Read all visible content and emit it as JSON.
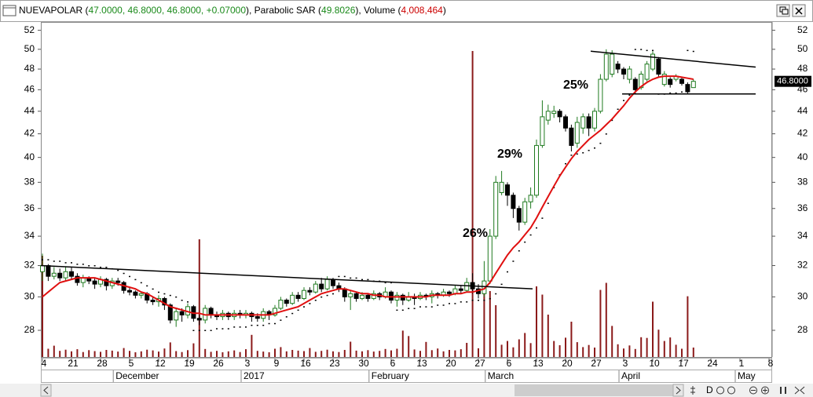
{
  "header": {
    "segments": [
      {
        "text": "NUEVAPOLAR (",
        "color": "#000000"
      },
      {
        "text": "47.0000, 46.8000, 46.8000, +0.07000",
        "color": "#1a8a1a"
      },
      {
        "text": "), Parabolic SAR (",
        "color": "#000000"
      },
      {
        "text": "49.8026",
        "color": "#1a8a1a"
      },
      {
        "text": "), Volume (",
        "color": "#000000"
      },
      {
        "text": "4,008,464",
        "color": "#cc0000"
      },
      {
        "text": ")",
        "color": "#000000"
      }
    ],
    "toolbar_text": "D"
  },
  "chart_data": {
    "type": "candlestick",
    "log_y": true,
    "grid": false,
    "ylim": [
      26.5,
      52.9
    ],
    "yticks": [
      28,
      30,
      32,
      34,
      36,
      38,
      40,
      42,
      44,
      46,
      48,
      50,
      52
    ],
    "categories": [
      "4",
      null,
      null,
      null,
      null,
      "21",
      null,
      null,
      null,
      null,
      "28",
      null,
      null,
      null,
      null,
      "5",
      null,
      null,
      null,
      null,
      "12",
      null,
      null,
      null,
      null,
      "19",
      null,
      null,
      null,
      null,
      "26",
      null,
      null,
      null,
      null,
      "3",
      null,
      null,
      null,
      null,
      "9",
      null,
      null,
      null,
      null,
      "16",
      null,
      null,
      null,
      null,
      "23",
      null,
      null,
      null,
      null,
      "30",
      null,
      null,
      null,
      null,
      "6",
      null,
      null,
      null,
      null,
      "13",
      null,
      null,
      null,
      null,
      "20",
      null,
      null,
      null,
      null,
      "27",
      null,
      null,
      null,
      null,
      "6",
      null,
      null,
      null,
      null,
      "13",
      null,
      null,
      null,
      null,
      "20",
      null,
      null,
      null,
      null,
      "27",
      null,
      null,
      null,
      null,
      "3",
      null,
      null,
      null,
      null,
      "10",
      null,
      null,
      null,
      null,
      "17",
      null,
      null,
      null,
      null,
      "24",
      null,
      null,
      null,
      null,
      "1",
      null,
      null,
      null,
      null,
      "8"
    ],
    "months": [
      null,
      null,
      null,
      null,
      null,
      null,
      null,
      null,
      null,
      null,
      null,
      null,
      null,
      "December",
      null,
      null,
      null,
      null,
      null,
      null,
      null,
      null,
      null,
      null,
      null,
      null,
      null,
      null,
      null,
      null,
      null,
      null,
      null,
      null,
      null,
      "2017",
      null,
      null,
      null,
      null,
      null,
      null,
      null,
      null,
      null,
      null,
      null,
      null,
      null,
      null,
      null,
      null,
      null,
      null,
      null,
      null,
      null,
      "February",
      null,
      null,
      null,
      null,
      null,
      null,
      null,
      null,
      null,
      null,
      null,
      null,
      null,
      null,
      null,
      null,
      null,
      null,
      null,
      "March",
      null,
      null,
      null,
      null,
      null,
      null,
      null,
      null,
      null,
      null,
      null,
      null,
      null,
      null,
      null,
      null,
      null,
      null,
      null,
      null,
      null,
      null,
      "April",
      null,
      null,
      null,
      null,
      null,
      null,
      null,
      null,
      null,
      null,
      null,
      null,
      null,
      null,
      null,
      null,
      null,
      null,
      null,
      "May",
      null,
      null,
      null,
      null,
      null
    ],
    "series": [
      {
        "type": "candlestick",
        "up_color": "#1f7a1f",
        "down_color": "#000000",
        "open": [
          31.6,
          32.0,
          31.3,
          31.5,
          31.2,
          31.6,
          31.3,
          30.9,
          31.2,
          31.0,
          30.8,
          31.1,
          30.7,
          31.0,
          30.9,
          30.4,
          30.3,
          30.1,
          30.2,
          29.8,
          29.7,
          29.9,
          29.5,
          28.6,
          29.1,
          28.9,
          29.4,
          28.7,
          28.6,
          29.3,
          28.9,
          28.8,
          29.0,
          28.8,
          29.0,
          28.9,
          29.0,
          28.8,
          28.7,
          29.1,
          28.9,
          29.3,
          29.8,
          29.6,
          30.1,
          29.9,
          30.4,
          30.3,
          30.8,
          30.5,
          31.1,
          30.7,
          30.5,
          30.0,
          30.2,
          29.9,
          30.1,
          29.9,
          30.2,
          30.0,
          30.3,
          29.8,
          30.1,
          29.8,
          30.0,
          29.9,
          30.1,
          30.0,
          30.2,
          30.1,
          30.3,
          30.2,
          30.5,
          30.4,
          30.9,
          30.5,
          30.2,
          31.0,
          34.0,
          37.2,
          37.8,
          37.0,
          36.0,
          35.0,
          36.5,
          37.0,
          41.0,
          43.2,
          43.8,
          44.0,
          43.5,
          42.5,
          41.2,
          42.5,
          43.5,
          42.5,
          44.0,
          47.0,
          47.5,
          48.5,
          48.0,
          47.0,
          47.0,
          46.2,
          47.0,
          48.0,
          49.0,
          46.5,
          47.0,
          47.0,
          47.0,
          46.5,
          46.2,
          null,
          null,
          null,
          null,
          null,
          null,
          null,
          null,
          null,
          null,
          null,
          null,
          null
        ],
        "high": [
          32.8,
          32.1,
          31.9,
          31.8,
          31.9,
          31.9,
          31.5,
          31.4,
          31.3,
          31.2,
          31.3,
          31.2,
          31.2,
          31.2,
          31.0,
          30.6,
          30.4,
          30.3,
          30.3,
          30.0,
          30.1,
          30.0,
          29.6,
          29.3,
          29.3,
          29.6,
          29.5,
          28.9,
          29.5,
          29.4,
          29.1,
          29.2,
          29.1,
          29.2,
          29.2,
          29.2,
          29.1,
          29.0,
          29.3,
          29.2,
          29.5,
          30.0,
          29.9,
          30.3,
          30.3,
          30.6,
          30.6,
          31.0,
          31.2,
          31.3,
          31.2,
          30.9,
          30.6,
          30.4,
          30.3,
          30.3,
          30.2,
          30.4,
          30.3,
          30.6,
          30.4,
          30.3,
          30.2,
          30.3,
          30.2,
          30.3,
          30.2,
          30.4,
          30.3,
          30.5,
          30.4,
          30.7,
          30.7,
          31.2,
          31.5,
          30.8,
          32.3,
          34.5,
          38.5,
          38.9,
          38.0,
          37.2,
          36.2,
          36.8,
          37.6,
          41.5,
          45.0,
          44.6,
          44.5,
          44.2,
          43.7,
          42.8,
          43.5,
          43.8,
          43.8,
          44.3,
          47.5,
          50.0,
          49.9,
          48.8,
          48.2,
          48.3,
          47.2,
          47.8,
          48.8,
          49.8,
          49.2,
          47.8,
          47.2,
          47.5,
          47.2,
          46.7,
          47.0,
          null,
          null,
          null,
          null,
          null,
          null,
          null,
          null,
          null,
          null,
          null,
          null,
          null
        ],
        "low": [
          31.0,
          31.0,
          31.1,
          31.0,
          31.0,
          31.1,
          30.7,
          30.6,
          30.8,
          30.5,
          30.6,
          30.4,
          30.5,
          30.7,
          30.2,
          30.1,
          29.9,
          29.9,
          29.6,
          29.5,
          29.4,
          29.2,
          28.4,
          28.2,
          28.5,
          28.7,
          28.5,
          28.3,
          28.4,
          28.7,
          28.6,
          28.6,
          28.6,
          28.6,
          28.7,
          28.7,
          28.5,
          28.5,
          28.5,
          28.6,
          28.8,
          29.2,
          29.4,
          29.5,
          29.7,
          29.8,
          30.1,
          30.2,
          30.3,
          30.4,
          30.5,
          30.3,
          29.7,
          29.2,
          29.7,
          29.8,
          29.7,
          29.8,
          29.8,
          29.9,
          29.6,
          29.4,
          29.5,
          29.7,
          29.5,
          29.8,
          29.8,
          29.6,
          29.9,
          30.0,
          30.0,
          30.1,
          30.2,
          30.3,
          30.2,
          29.9,
          30.0,
          30.8,
          33.8,
          37.0,
          36.2,
          35.3,
          34.4,
          34.8,
          36.0,
          36.8,
          40.8,
          42.8,
          43.4,
          43.0,
          42.2,
          40.5,
          40.8,
          42.0,
          41.8,
          42.2,
          43.8,
          46.8,
          47.2,
          47.6,
          47.0,
          46.6,
          45.6,
          46.0,
          46.8,
          47.8,
          47.2,
          46.3,
          46.2,
          46.8,
          46.4,
          45.6,
          46.2,
          null,
          null,
          null,
          null,
          null,
          null,
          null,
          null,
          null,
          null,
          null,
          null,
          null
        ],
        "close": [
          32.0,
          31.3,
          31.5,
          31.2,
          31.6,
          31.3,
          30.9,
          31.2,
          31.0,
          30.8,
          31.1,
          30.7,
          31.0,
          30.9,
          30.4,
          30.3,
          30.1,
          30.2,
          29.8,
          29.7,
          29.9,
          29.5,
          28.6,
          29.1,
          28.9,
          29.4,
          28.7,
          28.6,
          29.3,
          28.9,
          28.8,
          29.0,
          28.8,
          29.0,
          28.9,
          29.0,
          28.8,
          28.7,
          29.1,
          28.9,
          29.3,
          29.8,
          29.6,
          30.1,
          29.9,
          30.4,
          30.3,
          30.8,
          30.5,
          31.1,
          30.7,
          30.5,
          30.0,
          30.2,
          29.9,
          30.1,
          29.9,
          30.2,
          30.0,
          30.3,
          29.8,
          30.1,
          29.8,
          30.0,
          29.9,
          30.1,
          30.0,
          30.2,
          30.1,
          30.3,
          30.2,
          30.5,
          30.4,
          30.9,
          30.5,
          30.2,
          31.0,
          34.0,
          38.0,
          38.0,
          37.0,
          36.0,
          35.0,
          36.5,
          37.0,
          41.0,
          43.5,
          44.0,
          44.0,
          43.5,
          42.5,
          41.0,
          43.0,
          43.5,
          42.5,
          44.0,
          47.0,
          49.5,
          49.5,
          48.0,
          47.5,
          48.0,
          46.0,
          47.5,
          48.5,
          49.5,
          47.5,
          47.5,
          46.5,
          47.3,
          46.6,
          45.8,
          46.8,
          null,
          null,
          null,
          null,
          null,
          null,
          null,
          null,
          null,
          null,
          null,
          null,
          null
        ]
      },
      {
        "type": "dots",
        "color": "#000000",
        "values": [
          32.4,
          32.4,
          32.3,
          32.3,
          32.2,
          32.2,
          32.1,
          32.1,
          32.0,
          32.0,
          31.9,
          31.9,
          31.8,
          31.7,
          31.5,
          31.3,
          31.1,
          30.9,
          30.7,
          30.5,
          30.3,
          30.2,
          30.1,
          30.0,
          29.8,
          29.7,
          28.0,
          28.0,
          28.0,
          28.0,
          28.1,
          28.1,
          28.1,
          28.2,
          28.2,
          28.2,
          28.3,
          28.3,
          28.3,
          28.4,
          28.4,
          28.6,
          28.8,
          29.0,
          29.2,
          29.4,
          29.6,
          29.8,
          30.0,
          30.1,
          30.2,
          31.3,
          31.3,
          31.2,
          31.2,
          31.1,
          31.1,
          31.0,
          31.0,
          30.9,
          30.9,
          29.2,
          29.2,
          29.3,
          29.3,
          29.4,
          29.4,
          29.4,
          29.5,
          29.5,
          29.6,
          29.6,
          29.7,
          29.7,
          29.8,
          29.8,
          29.8,
          29.9,
          30.2,
          30.8,
          31.6,
          32.3,
          33.0,
          33.6,
          34.1,
          34.6,
          35.3,
          36.4,
          37.6,
          38.6,
          39.5,
          40.2,
          40.3,
          40.4,
          40.6,
          40.8,
          41.2,
          42.0,
          43.2,
          44.2,
          45.0,
          45.5,
          50.0,
          50.0,
          49.9,
          49.9,
          45.6,
          45.6,
          45.7,
          45.7,
          45.8,
          49.9,
          49.8026,
          null,
          null,
          null,
          null,
          null,
          null,
          null,
          null,
          null,
          null,
          null,
          null,
          null
        ]
      },
      {
        "type": "volume",
        "color": "#8b1a1a",
        "ylim": [
          0,
          135000000
        ],
        "values": [
          43000000,
          3500000,
          4800000,
          2600000,
          3100000,
          2400000,
          3300000,
          2100000,
          2900000,
          2500000,
          2200000,
          3000000,
          2700000,
          2300000,
          3800000,
          2600000,
          2000000,
          2400000,
          3100000,
          2800000,
          2300000,
          3600000,
          6200000,
          2500000,
          2100000,
          2900000,
          5800000,
          50000000,
          3400000,
          2200000,
          2600000,
          2000000,
          2400000,
          2800000,
          2100000,
          3300000,
          9400000,
          2600000,
          2300000,
          2000000,
          3500000,
          4200000,
          2400000,
          3000000,
          2700000,
          2500000,
          3800000,
          2200000,
          2600000,
          3100000,
          2400000,
          2100000,
          3000000,
          6500000,
          2700000,
          2400000,
          2900000,
          2300000,
          2600000,
          3400000,
          2800000,
          3500000,
          11200000,
          8900000,
          3200000,
          2600000,
          6400000,
          2900000,
          3600000,
          2400000,
          3000000,
          2800000,
          3300000,
          6000000,
          130000000,
          3700000,
          31000000,
          28000000,
          22000000,
          5200000,
          6800000,
          4100000,
          7500000,
          10200000,
          5900000,
          30000000,
          26500000,
          18000000,
          6800000,
          5000000,
          8200000,
          15000000,
          6300000,
          4200000,
          5100000,
          4000000,
          28500000,
          31500000,
          13200000,
          5400000,
          3600000,
          4900000,
          3400000,
          8400000,
          8100000,
          23500000,
          11600000,
          6800000,
          8300000,
          5200000,
          3500000,
          25800000,
          4008464,
          null,
          null,
          null,
          null,
          null,
          null,
          null,
          null,
          null,
          null,
          null,
          null,
          null
        ]
      },
      {
        "type": "line",
        "color": "#e01010",
        "values": [
          30.0,
          30.3,
          30.6,
          30.9,
          31.0,
          31.1,
          31.2,
          31.2,
          31.2,
          31.2,
          31.1,
          31.0,
          30.9,
          30.8,
          30.7,
          30.6,
          30.5,
          30.3,
          30.2,
          30.0,
          29.8,
          29.6,
          29.4,
          29.3,
          29.2,
          29.1,
          29.0,
          29.0,
          28.9,
          28.9,
          28.9,
          28.9,
          28.9,
          28.9,
          28.9,
          28.9,
          28.9,
          28.9,
          28.9,
          28.9,
          29.0,
          29.1,
          29.2,
          29.3,
          29.4,
          29.6,
          29.8,
          30.0,
          30.2,
          30.3,
          30.4,
          30.5,
          30.5,
          30.4,
          30.3,
          30.2,
          30.2,
          30.1,
          30.1,
          30.0,
          30.0,
          30.0,
          30.0,
          30.0,
          30.0,
          30.0,
          30.0,
          30.1,
          30.1,
          30.1,
          30.1,
          30.2,
          30.2,
          30.3,
          30.3,
          30.4,
          30.5,
          30.9,
          31.5,
          32.1,
          32.7,
          33.2,
          33.6,
          34.1,
          34.6,
          35.3,
          36.1,
          36.9,
          37.7,
          38.5,
          39.2,
          39.9,
          40.5,
          41.0,
          41.5,
          41.9,
          42.3,
          42.8,
          43.3,
          43.9,
          44.5,
          45.2,
          45.8,
          46.3,
          46.7,
          47.0,
          47.2,
          47.3,
          47.3,
          47.3,
          47.2,
          47.1,
          47.0,
          null,
          null,
          null,
          null,
          null,
          null,
          null,
          null,
          null,
          null,
          null,
          null,
          null
        ]
      }
    ],
    "trendlines": [
      {
        "color": "#000000",
        "values": [
          32.0,
          30.5
        ]
      },
      {
        "color": "#000000",
        "values": [
          49.8,
          48.2
        ]
      },
      {
        "color": "#000000",
        "values": [
          45.6,
          45.6
        ]
      }
    ],
    "annotations": [
      "26%",
      "29%",
      "25%"
    ],
    "last_price": {
      "value": 46.8,
      "label": "46.8000"
    }
  }
}
